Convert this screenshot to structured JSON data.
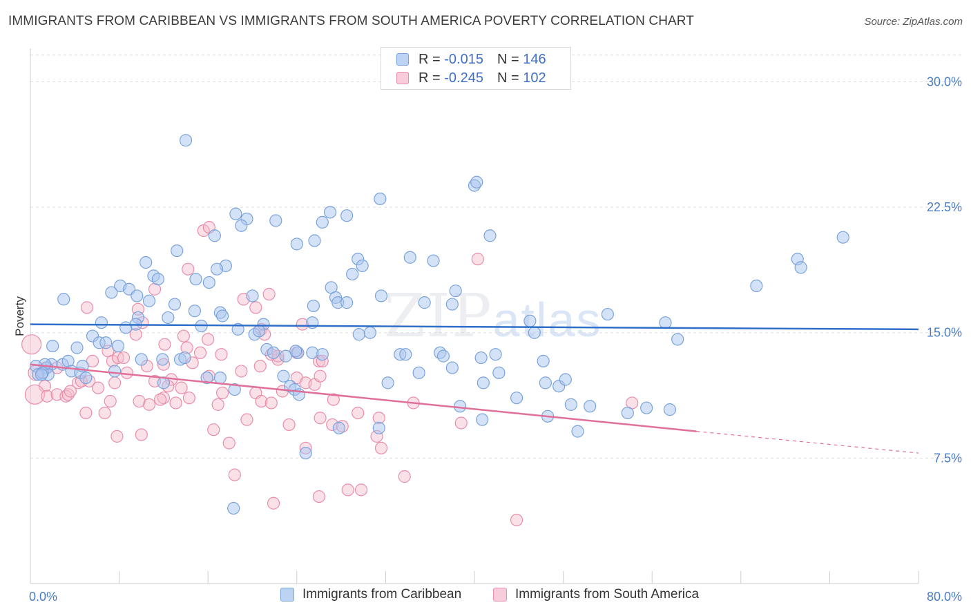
{
  "header": {
    "title": "IMMIGRANTS FROM CARIBBEAN VS IMMIGRANTS FROM SOUTH AMERICA POVERTY CORRELATION CHART",
    "source": "Source: ZipAtlas.com"
  },
  "watermark": {
    "zip": "ZIP",
    "atlas": "atlas"
  },
  "legend": {
    "rows": [
      {
        "r_label": "R =",
        "r_value": "-0.015",
        "n_label": "N =",
        "n_value": "146"
      },
      {
        "r_label": "R =",
        "r_value": "-0.245",
        "n_label": "N =",
        "n_value": "102"
      }
    ]
  },
  "colors": {
    "caribbean_fill": "#a9c6ef",
    "caribbean_stroke": "#7aa3da",
    "caribbean_line": "#2f6fc9",
    "southam_fill": "#f5bccd",
    "southam_stroke": "#e98dab",
    "southam_line": "#e0709a",
    "grid": "#dddddd",
    "tick_text": "#4a7cc4"
  },
  "chart_data": {
    "type": "scatter",
    "title": "IMMIGRANTS FROM CARIBBEAN VS IMMIGRANTS FROM SOUTH AMERICA POVERTY CORRELATION CHART",
    "xlabel": "",
    "ylabel": "Poverty",
    "xlim": [
      0,
      80
    ],
    "ylim": [
      0,
      32
    ],
    "x_tick_labels": [
      "0.0%",
      "80.0%"
    ],
    "y_ticks": [
      7.5,
      15.0,
      22.5,
      30.0
    ],
    "y_tick_labels": [
      "7.5%",
      "15.0%",
      "22.5%",
      "30.0%"
    ],
    "series": [
      {
        "name": "Immigrants from Caribbean",
        "r": -0.015,
        "n": 146,
        "trend": {
          "x0": 0,
          "y0": 15.5,
          "x1": 80,
          "y1": 15.2
        },
        "points": [
          [
            14,
            26.5
          ],
          [
            40,
            23.8
          ],
          [
            40.2,
            24.0
          ],
          [
            31.5,
            23.0
          ],
          [
            28.5,
            22.0
          ],
          [
            27,
            22.2
          ],
          [
            18.5,
            22.1
          ],
          [
            19.5,
            21.8
          ],
          [
            19,
            21.4
          ],
          [
            26.3,
            21.6
          ],
          [
            22.1,
            21.7
          ],
          [
            16.6,
            20.8
          ],
          [
            25.6,
            20.5
          ],
          [
            24,
            20.3
          ],
          [
            41.4,
            20.8
          ],
          [
            13.2,
            19.9
          ],
          [
            34.2,
            19.5
          ],
          [
            36.3,
            19.3
          ],
          [
            29.5,
            19.4
          ],
          [
            10.4,
            19.2
          ],
          [
            17.6,
            19.0
          ],
          [
            16.8,
            18.8
          ],
          [
            29.9,
            19.0
          ],
          [
            11.1,
            18.4
          ],
          [
            11.5,
            18.2
          ],
          [
            14.9,
            18.2
          ],
          [
            16.1,
            18.0
          ],
          [
            29.0,
            18.5
          ],
          [
            8.1,
            17.8
          ],
          [
            8.9,
            17.6
          ],
          [
            27.1,
            17.7
          ],
          [
            38.3,
            17.5
          ],
          [
            7.3,
            17.4
          ],
          [
            9.6,
            17.2
          ],
          [
            31.6,
            17.2
          ],
          [
            20,
            17.2
          ],
          [
            27.5,
            17.1
          ],
          [
            3.0,
            17.0
          ],
          [
            10.7,
            16.9
          ],
          [
            13,
            16.7
          ],
          [
            27.7,
            16.8
          ],
          [
            28.5,
            16.8
          ],
          [
            35.5,
            16.8
          ],
          [
            38,
            16.7
          ],
          [
            25.5,
            16.6
          ],
          [
            14.8,
            16.3
          ],
          [
            17.1,
            16.2
          ],
          [
            17.3,
            16.0
          ],
          [
            12.4,
            15.9
          ],
          [
            9.7,
            15.9
          ],
          [
            6.4,
            15.6
          ],
          [
            9.5,
            15.5
          ],
          [
            8.6,
            15.3
          ],
          [
            21.0,
            15.5
          ],
          [
            25.4,
            15.6
          ],
          [
            15.4,
            15.4
          ],
          [
            18.7,
            15.2
          ],
          [
            20.2,
            14.9
          ],
          [
            20.6,
            15.1
          ],
          [
            29.6,
            14.9
          ],
          [
            30.6,
            15.0
          ],
          [
            45.0,
            15.7
          ],
          [
            45.4,
            15.0
          ],
          [
            52,
            16.1
          ],
          [
            57.2,
            15.6
          ],
          [
            58.3,
            14.6
          ],
          [
            65.4,
            17.8
          ],
          [
            69.1,
            19.4
          ],
          [
            69.4,
            18.9
          ],
          [
            73.2,
            20.7
          ],
          [
            5.6,
            14.8
          ],
          [
            6.2,
            14.4
          ],
          [
            6.8,
            14.4
          ],
          [
            2.0,
            14.2
          ],
          [
            4.2,
            14.1
          ],
          [
            7.9,
            14.2
          ],
          [
            21.3,
            14.0
          ],
          [
            24.1,
            13.8
          ],
          [
            23.9,
            13.9
          ],
          [
            23.0,
            13.6
          ],
          [
            26.3,
            13.7
          ],
          [
            1.9,
            13.1
          ],
          [
            2.9,
            13.1
          ],
          [
            3.4,
            13.3
          ],
          [
            1.5,
            12.9
          ],
          [
            1.6,
            12.5
          ],
          [
            1.3,
            13.1
          ],
          [
            0.5,
            13.0
          ],
          [
            0.7,
            12.5
          ],
          [
            1.1,
            12.6
          ],
          [
            3.7,
            12.7
          ],
          [
            4.5,
            12.6
          ],
          [
            5,
            12.3
          ],
          [
            4.7,
            13.0
          ],
          [
            7.6,
            12.7
          ],
          [
            11.9,
            13.4
          ],
          [
            10.0,
            13.4
          ],
          [
            13.5,
            13.4
          ],
          [
            13.9,
            13.5
          ],
          [
            21.9,
            13.8
          ],
          [
            25.4,
            13.8
          ],
          [
            22.8,
            12.4
          ],
          [
            17.1,
            12.3
          ],
          [
            15.9,
            12.3
          ],
          [
            33.3,
            13.7
          ],
          [
            33.8,
            13.7
          ],
          [
            36.9,
            13.8
          ],
          [
            37.2,
            13.6
          ],
          [
            38.0,
            12.9
          ],
          [
            40.6,
            13.5
          ],
          [
            41.9,
            13.7
          ],
          [
            42.2,
            12.6
          ],
          [
            46.2,
            13.3
          ],
          [
            35.0,
            12.6
          ],
          [
            32.2,
            12.0
          ],
          [
            40.8,
            12.0
          ],
          [
            43.8,
            11.1
          ],
          [
            46.4,
            12.0
          ],
          [
            47.6,
            11.8
          ],
          [
            48.2,
            12.2
          ],
          [
            18.4,
            11.6
          ],
          [
            23.4,
            11.8
          ],
          [
            23.8,
            11.6
          ],
          [
            24.2,
            11.3
          ],
          [
            38.7,
            10.6
          ],
          [
            40.7,
            9.8
          ],
          [
            46.6,
            10.0
          ],
          [
            48.7,
            10.7
          ],
          [
            50.4,
            10.6
          ],
          [
            53.8,
            10.2
          ],
          [
            55.5,
            10.5
          ],
          [
            57.6,
            10.4
          ],
          [
            27.8,
            9.3
          ],
          [
            31.4,
            9.3
          ],
          [
            49.3,
            9.1
          ],
          [
            24.8,
            7.8
          ],
          [
            18.3,
            4.5
          ],
          [
            1.0,
            12.5
          ],
          [
            12.0,
            12.0
          ]
        ]
      },
      {
        "name": "Immigrants from South America",
        "r": -0.245,
        "n": 102,
        "trend": {
          "x0": 0,
          "y0": 13.1,
          "x1": 60,
          "y1": 9.1,
          "dash_x1": 80,
          "dash_y1": 7.8
        },
        "points": [
          [
            15.6,
            21.1
          ],
          [
            16.1,
            21.3
          ],
          [
            14.2,
            18.8
          ],
          [
            40.3,
            19.4
          ],
          [
            11.2,
            17.6
          ],
          [
            21.5,
            17.3
          ],
          [
            19.2,
            17.0
          ],
          [
            20.3,
            16.5
          ],
          [
            5.1,
            16.5
          ],
          [
            9.7,
            16.4
          ],
          [
            10.1,
            15.6
          ],
          [
            24.5,
            15.5
          ],
          [
            20.8,
            15.2
          ],
          [
            9.5,
            14.9
          ],
          [
            13.8,
            14.8
          ],
          [
            16.0,
            14.6
          ],
          [
            21.1,
            14.9
          ],
          [
            7.0,
            13.9
          ],
          [
            12.1,
            14.3
          ],
          [
            14.1,
            14.1
          ],
          [
            15.3,
            13.8
          ],
          [
            17.2,
            13.7
          ],
          [
            21.7,
            13.7
          ],
          [
            22.3,
            13.4
          ],
          [
            22.3,
            13.6
          ],
          [
            24.0,
            13.8
          ],
          [
            26.0,
            13.3
          ],
          [
            26.3,
            13.3
          ],
          [
            7.4,
            13.3
          ],
          [
            7.9,
            13.5
          ],
          [
            8.4,
            13.5
          ],
          [
            10.5,
            13.0
          ],
          [
            12.0,
            13.1
          ],
          [
            14.6,
            13.2
          ],
          [
            5.6,
            13.3
          ],
          [
            0.1,
            14.3
          ],
          [
            0.5,
            12.6
          ],
          [
            1.4,
            12.9
          ],
          [
            2.4,
            12.9
          ],
          [
            1.3,
            11.8
          ],
          [
            0.4,
            11.3
          ],
          [
            1.5,
            11.2
          ],
          [
            2.4,
            11.3
          ],
          [
            3.2,
            11.2
          ],
          [
            3.4,
            11.3
          ],
          [
            3.6,
            11.5
          ],
          [
            4.3,
            12.0
          ],
          [
            4.6,
            12.1
          ],
          [
            5.3,
            12.1
          ],
          [
            6.1,
            11.7
          ],
          [
            7.6,
            12.0
          ],
          [
            8.7,
            12.6
          ],
          [
            11.2,
            12.1
          ],
          [
            12.7,
            12.2
          ],
          [
            12.4,
            11.8
          ],
          [
            13.6,
            11.7
          ],
          [
            16.1,
            12.4
          ],
          [
            17.3,
            11.4
          ],
          [
            19.0,
            12.7
          ],
          [
            20.7,
            13.0
          ],
          [
            24.0,
            12.3
          ],
          [
            24.8,
            12.0
          ],
          [
            25.6,
            11.9
          ],
          [
            26.1,
            12.4
          ],
          [
            20.3,
            11.4
          ],
          [
            22.7,
            11.5
          ],
          [
            27.3,
            11.0
          ],
          [
            12.0,
            11.1
          ],
          [
            11.7,
            11.0
          ],
          [
            10.7,
            10.7
          ],
          [
            9.8,
            10.9
          ],
          [
            6.7,
            10.2
          ],
          [
            5.0,
            10.2
          ],
          [
            7.2,
            10.9
          ],
          [
            13.1,
            10.8
          ],
          [
            14.3,
            11.1
          ],
          [
            16.9,
            10.7
          ],
          [
            20.8,
            10.9
          ],
          [
            21.7,
            10.8
          ],
          [
            29.5,
            10.2
          ],
          [
            31.4,
            9.9
          ],
          [
            34.5,
            10.8
          ],
          [
            38.8,
            9.6
          ],
          [
            27.2,
            9.5
          ],
          [
            26.1,
            9.9
          ],
          [
            23.3,
            9.5
          ],
          [
            19.5,
            9.8
          ],
          [
            16.5,
            9.2
          ],
          [
            28.1,
            9.4
          ],
          [
            7.8,
            8.8
          ],
          [
            10.0,
            8.9
          ],
          [
            31.2,
            8.8
          ],
          [
            31.6,
            8.1
          ],
          [
            24.8,
            8.1
          ],
          [
            17.9,
            8.4
          ],
          [
            18.4,
            6.5
          ],
          [
            33.7,
            6.4
          ],
          [
            28.6,
            5.6
          ],
          [
            29.8,
            5.6
          ],
          [
            26.0,
            5.2
          ],
          [
            21.9,
            4.8
          ],
          [
            43.8,
            3.8
          ],
          [
            54.2,
            10.8
          ]
        ]
      }
    ]
  },
  "bottom_legend": {
    "items": [
      {
        "label": "Immigrants from Caribbean"
      },
      {
        "label": "Immigrants from South America"
      }
    ]
  }
}
